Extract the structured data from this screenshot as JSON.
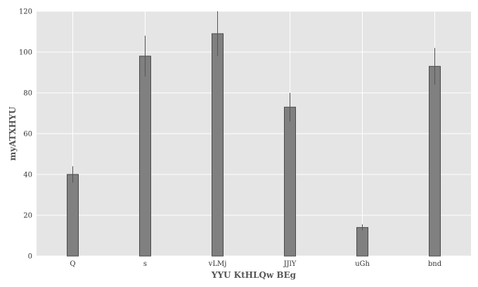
{
  "chart_data": {
    "type": "bar",
    "title": "",
    "xlabel": "YYU KtHLQw BEg",
    "ylabel": "myATXHYU",
    "categories": [
      "Q",
      "s",
      "vLMj",
      "JJlY",
      "uGh",
      "bnd"
    ],
    "values": [
      40,
      98,
      109,
      73,
      14,
      93
    ],
    "errors": [
      4,
      10,
      11,
      7,
      1.5,
      9
    ],
    "ylim": [
      0,
      120
    ],
    "yticks": [
      0,
      20,
      40,
      60,
      80,
      100,
      120
    ],
    "grid": true,
    "colors": {
      "bar": "#808080",
      "bar_edge": "#4a4a4a",
      "error_bar": "#555555",
      "background": "#e5e5e5",
      "grid": "#ffffff"
    }
  }
}
